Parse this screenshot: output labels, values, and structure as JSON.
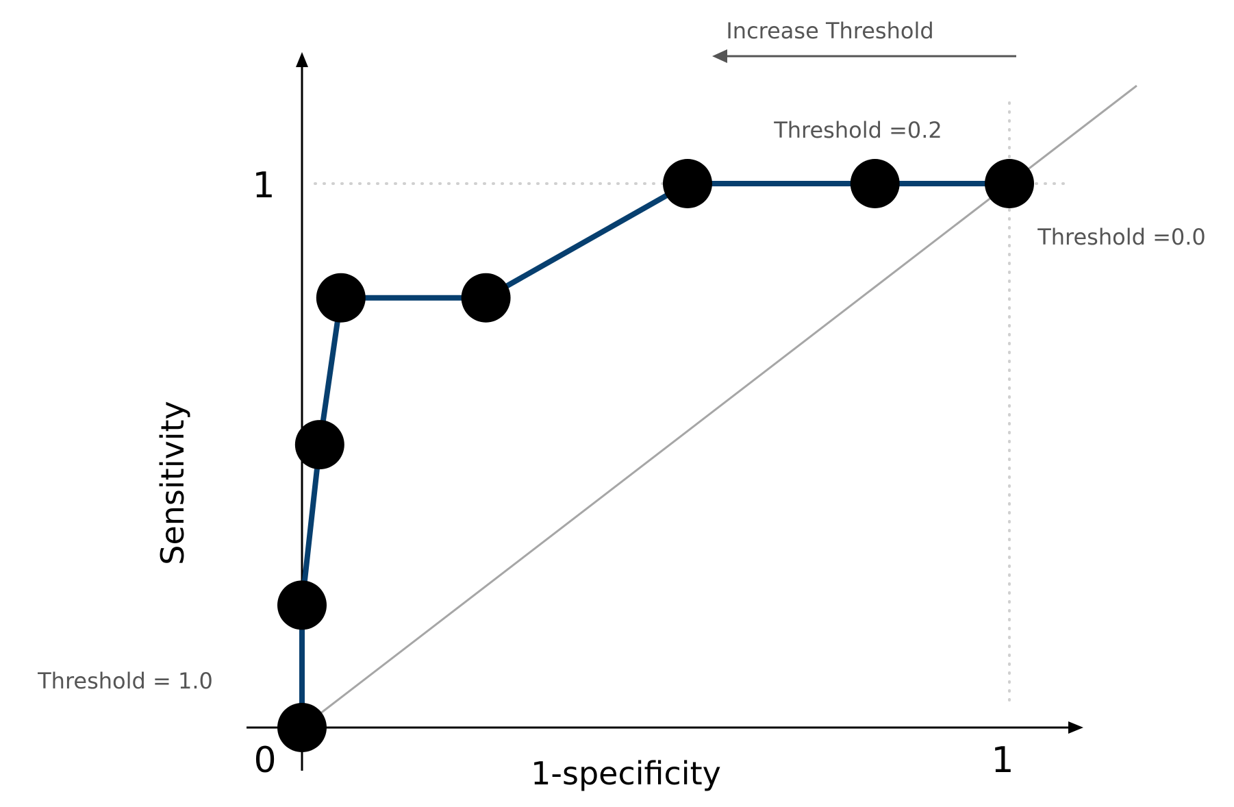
{
  "chart_data": {
    "type": "line",
    "xlabel": "1-specificity",
    "ylabel": "Sensitivity",
    "xlim": [
      0,
      1
    ],
    "ylim": [
      0,
      1
    ],
    "x_ticks": [
      "0",
      "1"
    ],
    "y_ticks": [
      "1"
    ],
    "series": [
      {
        "x": [
          0.0,
          0.0,
          0.025,
          0.055,
          0.26,
          0.545,
          0.81,
          1.0
        ],
        "y": [
          0.0,
          0.225,
          0.52,
          0.79,
          0.79,
          1.0,
          1.0,
          1.0
        ]
      }
    ],
    "reference_line": {
      "x": [
        0,
        1.18
      ],
      "y": [
        0,
        1.18
      ]
    },
    "annotations": {
      "threshold_high": "Threshold = 1.0",
      "threshold_mid": "Threshold =0.2",
      "threshold_low": "Threshold =0.0",
      "direction": "Increase Threshold"
    },
    "colors": {
      "roc_line": "#073f6f",
      "points": "#000000",
      "diagonal": "#a6a6a6",
      "guides": "#d0d0d0",
      "annotation_text": "#555555",
      "arrow": "#555555"
    },
    "grid": false
  }
}
